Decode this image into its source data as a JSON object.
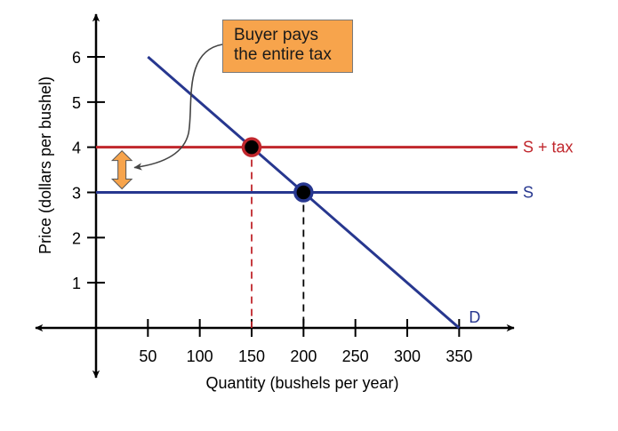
{
  "chart_data": {
    "type": "line",
    "xlabel": "Quantity (bushels per year)",
    "ylabel": "Price (dollars per bushel)",
    "xlim": [
      -50,
      400
    ],
    "ylim": [
      -1,
      7
    ],
    "x_ticks": [
      50,
      100,
      150,
      200,
      250,
      300,
      350
    ],
    "y_ticks": [
      1,
      2,
      3,
      4,
      5,
      6
    ],
    "series": [
      {
        "name": "D",
        "color": "#27378f",
        "points": [
          [
            50,
            6
          ],
          [
            350,
            0
          ]
        ]
      },
      {
        "name": "S",
        "color": "#27378f",
        "points": [
          [
            0,
            3
          ],
          [
            420,
            3
          ]
        ]
      },
      {
        "name": "S + tax",
        "color": "#c1272d",
        "points": [
          [
            0,
            4
          ],
          [
            420,
            4
          ]
        ]
      }
    ],
    "equilibria": [
      {
        "name": "before-tax",
        "x": 200,
        "y": 3,
        "ring_color": "#27378f",
        "guide_color": "#000000"
      },
      {
        "name": "after-tax",
        "x": 150,
        "y": 4,
        "ring_color": "#c1272d",
        "guide_color": "#c1272d"
      }
    ],
    "tax_arrow": {
      "from": 3,
      "to": 4,
      "x": 25,
      "color": "#f7a44c"
    },
    "annotation": {
      "lines": [
        "Buyer pays",
        "the entire tax"
      ],
      "fill": "#f7a44c"
    }
  }
}
